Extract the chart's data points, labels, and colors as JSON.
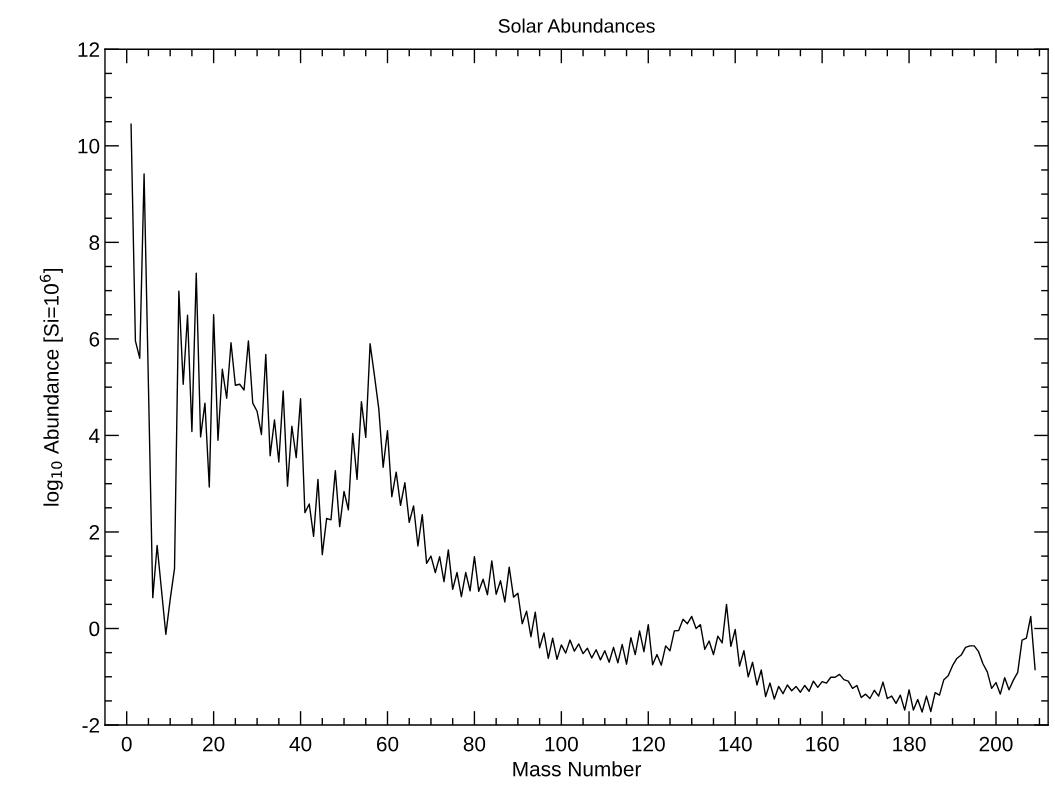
{
  "chart_data": {
    "type": "line",
    "title": "Solar Abundances",
    "xlabel": "Mass Number",
    "ylabel": "log$_{10}$ Abundance [Si=10$^{6}$]",
    "x": [
      1,
      2,
      3,
      4,
      6,
      7,
      9,
      10,
      11,
      12,
      13,
      14,
      15,
      16,
      17,
      18,
      19,
      20,
      21,
      22,
      23,
      24,
      25,
      26,
      27,
      28,
      29,
      30,
      31,
      32,
      33,
      34,
      35,
      36,
      37,
      38,
      39,
      40,
      41,
      42,
      43,
      44,
      45,
      46,
      47,
      48,
      49,
      50,
      51,
      52,
      53,
      54,
      55,
      56,
      57,
      58,
      59,
      60,
      61,
      62,
      63,
      64,
      65,
      66,
      67,
      68,
      69,
      70,
      71,
      72,
      73,
      74,
      75,
      76,
      77,
      78,
      79,
      80,
      81,
      82,
      83,
      84,
      85,
      86,
      87,
      88,
      89,
      90,
      91,
      92,
      93,
      94,
      95,
      96,
      97,
      98,
      99,
      100,
      101,
      102,
      103,
      104,
      105,
      106,
      107,
      108,
      109,
      110,
      111,
      112,
      113,
      114,
      115,
      116,
      117,
      118,
      119,
      120,
      121,
      122,
      123,
      124,
      125,
      126,
      127,
      128,
      129,
      130,
      131,
      132,
      133,
      134,
      135,
      136,
      137,
      138,
      139,
      140,
      141,
      142,
      143,
      144,
      145,
      146,
      147,
      148,
      149,
      150,
      151,
      152,
      153,
      154,
      155,
      156,
      157,
      158,
      159,
      160,
      161,
      162,
      163,
      164,
      165,
      166,
      167,
      168,
      169,
      170,
      171,
      172,
      173,
      174,
      175,
      176,
      177,
      178,
      179,
      180,
      181,
      182,
      183,
      184,
      185,
      186,
      187,
      188,
      189,
      190,
      191,
      192,
      193,
      194,
      195,
      196,
      197,
      198,
      199,
      200,
      201,
      202,
      203,
      204,
      205,
      206,
      207,
      208,
      209
    ],
    "series": [
      {
        "color": "#000000",
        "values": [
          10.45,
          5.96,
          5.6,
          9.42,
          0.64,
          1.72,
          -0.12,
          0.6,
          1.24,
          6.99,
          5.06,
          6.49,
          4.08,
          7.36,
          3.97,
          4.67,
          2.93,
          6.5,
          3.9,
          5.37,
          4.77,
          5.92,
          5.04,
          5.06,
          4.94,
          5.96,
          4.67,
          4.5,
          4.02,
          5.68,
          3.58,
          4.32,
          3.45,
          4.92,
          2.95,
          4.19,
          3.54,
          4.76,
          2.4,
          2.58,
          1.91,
          3.09,
          1.53,
          2.28,
          2.25,
          3.27,
          2.11,
          2.84,
          2.46,
          4.04,
          3.09,
          4.7,
          3.96,
          5.9,
          5.24,
          4.55,
          3.34,
          4.1,
          2.73,
          3.24,
          2.55,
          3.02,
          2.2,
          2.54,
          1.71,
          2.36,
          1.35,
          1.5,
          1.16,
          1.49,
          0.97,
          1.63,
          0.81,
          1.16,
          0.66,
          1.16,
          0.78,
          1.49,
          0.77,
          1.02,
          0.7,
          1.4,
          0.71,
          0.99,
          0.55,
          1.27,
          0.65,
          0.73,
          0.1,
          0.36,
          -0.17,
          0.34,
          -0.4,
          -0.09,
          -0.62,
          -0.2,
          -0.64,
          -0.34,
          -0.51,
          -0.24,
          -0.47,
          -0.32,
          -0.52,
          -0.41,
          -0.61,
          -0.44,
          -0.65,
          -0.46,
          -0.7,
          -0.39,
          -0.71,
          -0.33,
          -0.74,
          -0.19,
          -0.54,
          -0.05,
          -0.48,
          0.08,
          -0.75,
          -0.54,
          -0.76,
          -0.36,
          -0.46,
          -0.05,
          -0.04,
          0.19,
          0.1,
          0.25,
          0.0,
          0.08,
          -0.43,
          -0.26,
          -0.54,
          -0.16,
          -0.3,
          0.5,
          -0.37,
          -0.02,
          -0.78,
          -0.46,
          -1.0,
          -0.7,
          -1.17,
          -0.86,
          -1.41,
          -1.13,
          -1.46,
          -1.2,
          -1.35,
          -1.17,
          -1.29,
          -1.2,
          -1.32,
          -1.18,
          -1.3,
          -1.09,
          -1.22,
          -1.1,
          -1.13,
          -1.01,
          -1.01,
          -0.95,
          -1.06,
          -1.09,
          -1.24,
          -1.18,
          -1.43,
          -1.36,
          -1.45,
          -1.28,
          -1.4,
          -1.11,
          -1.45,
          -1.4,
          -1.55,
          -1.38,
          -1.69,
          -1.27,
          -1.69,
          -1.47,
          -1.73,
          -1.4,
          -1.72,
          -1.33,
          -1.38,
          -1.06,
          -0.98,
          -0.77,
          -0.62,
          -0.55,
          -0.39,
          -0.36,
          -0.36,
          -0.48,
          -0.73,
          -0.9,
          -1.24,
          -1.12,
          -1.36,
          -1.02,
          -1.27,
          -1.07,
          -0.91,
          -0.24,
          -0.2,
          0.25,
          -0.85
        ]
      }
    ],
    "xlim": [
      -5,
      212
    ],
    "ylim": [
      -2,
      12
    ],
    "xticks": [
      0,
      {
        "value": 5,
        "label": null
      },
      {
        "value": 10,
        "label": null
      },
      {
        "value": 15,
        "label": null
      },
      20,
      {
        "value": 25,
        "label": null
      },
      {
        "value": 30,
        "label": null
      },
      {
        "value": 35,
        "label": null
      },
      40,
      {
        "value": 45,
        "label": null
      },
      {
        "value": 50,
        "label": null
      },
      {
        "value": 55,
        "label": null
      },
      60,
      {
        "value": 65,
        "label": null
      },
      {
        "value": 70,
        "label": null
      },
      {
        "value": 75,
        "label": null
      },
      80,
      {
        "value": 85,
        "label": null
      },
      {
        "value": 90,
        "label": null
      },
      {
        "value": 95,
        "label": null
      },
      100,
      {
        "value": 105,
        "label": null
      },
      {
        "value": 110,
        "label": null
      },
      {
        "value": 115,
        "label": null
      },
      120,
      {
        "value": 125,
        "label": null
      },
      {
        "value": 130,
        "label": null
      },
      {
        "value": 135,
        "label": null
      },
      140,
      {
        "value": 145,
        "label": null
      },
      {
        "value": 150,
        "label": null
      },
      {
        "value": 155,
        "label": null
      },
      160,
      {
        "value": 165,
        "label": null
      },
      {
        "value": 170,
        "label": null
      },
      {
        "value": 175,
        "label": null
      },
      180,
      {
        "value": 185,
        "label": null
      },
      {
        "value": 190,
        "label": null
      },
      {
        "value": 195,
        "label": null
      },
      200,
      {
        "value": 205,
        "label": null
      },
      {
        "value": 210,
        "label": null
      }
    ],
    "yticks": [
      -2,
      {
        "value": -1.5,
        "label": null
      },
      {
        "value": -1,
        "label": null
      },
      {
        "value": -0.5,
        "label": null
      },
      0,
      {
        "value": 0.5,
        "label": null
      },
      {
        "value": 1,
        "label": null
      },
      {
        "value": 1.5,
        "label": null
      },
      2,
      {
        "value": 2.5,
        "label": null
      },
      {
        "value": 3,
        "label": null
      },
      {
        "value": 3.5,
        "label": null
      },
      4,
      {
        "value": 4.5,
        "label": null
      },
      {
        "value": 5,
        "label": null
      },
      {
        "value": 5.5,
        "label": null
      },
      6,
      {
        "value": 6.5,
        "label": null
      },
      {
        "value": 7,
        "label": null
      },
      {
        "value": 7.5,
        "label": null
      },
      8,
      {
        "value": 8.5,
        "label": null
      },
      {
        "value": 9,
        "label": null
      },
      {
        "value": 9.5,
        "label": null
      },
      10,
      {
        "value": 10.5,
        "label": null
      },
      {
        "value": 11,
        "label": null
      },
      {
        "value": 11.5,
        "label": null
      },
      12
    ],
    "grid": false,
    "legend": false,
    "marker": "none",
    "line_style": "solid"
  }
}
